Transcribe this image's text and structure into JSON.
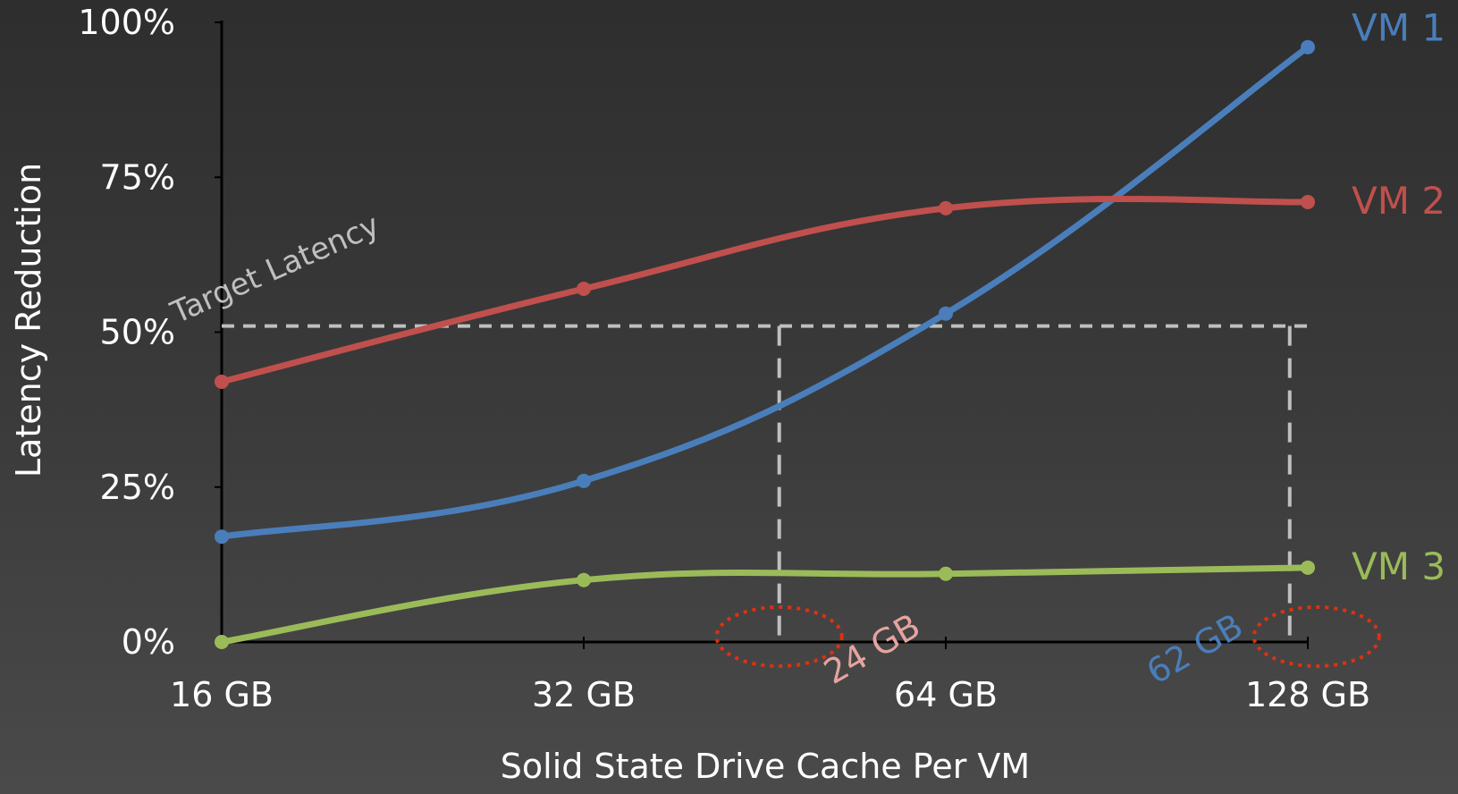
{
  "chart_data": {
    "type": "line",
    "x_categories": [
      "16 GB",
      "32 GB",
      "64 GB",
      "128 GB"
    ],
    "y_ticks": [
      "0%",
      "25%",
      "50%",
      "75%",
      "100%"
    ],
    "ylim": [
      0,
      100
    ],
    "xlabel": "Solid State Drive Cache Per VM",
    "ylabel": "Latency Reduction",
    "grid": false,
    "series": [
      {
        "name": "VM 1",
        "color": "#4a7ebb",
        "values": [
          17,
          26,
          53,
          96
        ]
      },
      {
        "name": "VM 2",
        "color": "#c0504d",
        "values": [
          42,
          57,
          70,
          71
        ]
      },
      {
        "name": "VM 3",
        "color": "#9bbb59",
        "values": [
          0,
          10,
          11,
          12
        ]
      }
    ],
    "target": {
      "label": "Target Latency",
      "value": 51,
      "color": "#bfbfbf"
    },
    "annotations": [
      {
        "label": "24 GB",
        "series": "VM 2",
        "color": "#e6a3a0",
        "x_position": 1.54
      },
      {
        "label": "62 GB",
        "series": "VM 1",
        "color": "#4a7ebb",
        "x_position": 2.95
      }
    ],
    "highlight_color": "#e03010"
  }
}
